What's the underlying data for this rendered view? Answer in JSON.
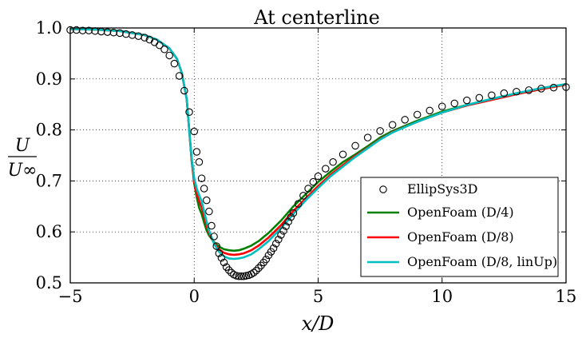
{
  "chart_data": {
    "type": "line",
    "title": "At centerline",
    "xlabel": "x/D",
    "ylabel": {
      "numerator": "U",
      "denominator": "U∞"
    },
    "xlim": [
      -5,
      15
    ],
    "ylim": [
      0.5,
      1.0
    ],
    "xticks": [
      -5,
      0,
      5,
      10,
      15
    ],
    "xtick_labels": [
      "−5",
      "0",
      "5",
      "10",
      "15"
    ],
    "yticks": [
      0.5,
      0.6,
      0.7,
      0.8,
      0.9,
      1.0
    ],
    "ytick_labels": [
      "0.5",
      "0.6",
      "0.7",
      "0.8",
      "0.9",
      "1.0"
    ],
    "grid": true,
    "legend_position": "lower-right",
    "series": [
      {
        "name": "EllipSys3D",
        "style": "markers",
        "marker": "open-circle",
        "color": "#000000",
        "points": [
          [
            -5.0,
            0.996
          ],
          [
            -4.75,
            0.996
          ],
          [
            -4.5,
            0.995
          ],
          [
            -4.25,
            0.995
          ],
          [
            -4.0,
            0.994
          ],
          [
            -3.75,
            0.993
          ],
          [
            -3.5,
            0.992
          ],
          [
            -3.25,
            0.991
          ],
          [
            -3.0,
            0.99
          ],
          [
            -2.75,
            0.988
          ],
          [
            -2.5,
            0.986
          ],
          [
            -2.25,
            0.984
          ],
          [
            -2.0,
            0.981
          ],
          [
            -1.8,
            0.977
          ],
          [
            -1.6,
            0.972
          ],
          [
            -1.4,
            0.966
          ],
          [
            -1.2,
            0.958
          ],
          [
            -1.0,
            0.946
          ],
          [
            -0.8,
            0.93
          ],
          [
            -0.6,
            0.906
          ],
          [
            -0.4,
            0.877
          ],
          [
            -0.2,
            0.835
          ],
          [
            0.0,
            0.797
          ],
          [
            0.1,
            0.757
          ],
          [
            0.2,
            0.737
          ],
          [
            0.3,
            0.705
          ],
          [
            0.4,
            0.685
          ],
          [
            0.5,
            0.662
          ],
          [
            0.6,
            0.64
          ],
          [
            0.7,
            0.612
          ],
          [
            0.8,
            0.591
          ],
          [
            0.9,
            0.572
          ],
          [
            1.0,
            0.558
          ],
          [
            1.1,
            0.549
          ],
          [
            1.2,
            0.54
          ],
          [
            1.3,
            0.531
          ],
          [
            1.4,
            0.525
          ],
          [
            1.5,
            0.52
          ],
          [
            1.6,
            0.516
          ],
          [
            1.7,
            0.514
          ],
          [
            1.8,
            0.513
          ],
          [
            1.9,
            0.513
          ],
          [
            2.0,
            0.513
          ],
          [
            2.1,
            0.514
          ],
          [
            2.2,
            0.515
          ],
          [
            2.3,
            0.517
          ],
          [
            2.4,
            0.52
          ],
          [
            2.5,
            0.524
          ],
          [
            2.6,
            0.529
          ],
          [
            2.7,
            0.534
          ],
          [
            2.8,
            0.54
          ],
          [
            2.9,
            0.546
          ],
          [
            3.0,
            0.554
          ],
          [
            3.1,
            0.561
          ],
          [
            3.2,
            0.568
          ],
          [
            3.3,
            0.577
          ],
          [
            3.4,
            0.585
          ],
          [
            3.5,
            0.594
          ],
          [
            3.6,
            0.602
          ],
          [
            3.7,
            0.611
          ],
          [
            3.8,
            0.62
          ],
          [
            3.9,
            0.629
          ],
          [
            4.0,
            0.637
          ],
          [
            4.2,
            0.655
          ],
          [
            4.4,
            0.671
          ],
          [
            4.6,
            0.685
          ],
          [
            4.8,
            0.698
          ],
          [
            5.0,
            0.709
          ],
          [
            5.3,
            0.724
          ],
          [
            5.6,
            0.737
          ],
          [
            6.0,
            0.752
          ],
          [
            6.5,
            0.769
          ],
          [
            7.0,
            0.785
          ],
          [
            7.5,
            0.798
          ],
          [
            8.0,
            0.81
          ],
          [
            8.5,
            0.82
          ],
          [
            9.0,
            0.83
          ],
          [
            9.5,
            0.838
          ],
          [
            10.0,
            0.846
          ],
          [
            10.5,
            0.852
          ],
          [
            11.0,
            0.858
          ],
          [
            11.5,
            0.863
          ],
          [
            12.0,
            0.868
          ],
          [
            12.5,
            0.872
          ],
          [
            13.0,
            0.875
          ],
          [
            13.5,
            0.878
          ],
          [
            14.0,
            0.881
          ],
          [
            14.5,
            0.883
          ],
          [
            15.0,
            0.884
          ]
        ]
      },
      {
        "name": "OpenFoam (D/4)",
        "style": "line",
        "color": "#008000",
        "points": [
          [
            -5.0,
            0.998
          ],
          [
            -4.0,
            0.997
          ],
          [
            -3.0,
            0.994
          ],
          [
            -2.0,
            0.986
          ],
          [
            -1.5,
            0.977
          ],
          [
            -1.0,
            0.96
          ],
          [
            -0.7,
            0.94
          ],
          [
            -0.5,
            0.912
          ],
          [
            -0.3,
            0.86
          ],
          [
            -0.2,
            0.8
          ],
          [
            -0.1,
            0.74
          ],
          [
            0.0,
            0.695
          ],
          [
            0.1,
            0.668
          ],
          [
            0.2,
            0.647
          ],
          [
            0.3,
            0.635
          ],
          [
            0.4,
            0.618
          ],
          [
            0.5,
            0.603
          ],
          [
            0.6,
            0.593
          ],
          [
            0.8,
            0.58
          ],
          [
            1.0,
            0.571
          ],
          [
            1.2,
            0.566
          ],
          [
            1.4,
            0.564
          ],
          [
            1.6,
            0.563
          ],
          [
            1.8,
            0.564
          ],
          [
            2.0,
            0.567
          ],
          [
            2.3,
            0.573
          ],
          [
            2.6,
            0.582
          ],
          [
            3.0,
            0.598
          ],
          [
            3.5,
            0.622
          ],
          [
            4.0,
            0.65
          ],
          [
            4.5,
            0.674
          ],
          [
            5.0,
            0.698
          ],
          [
            5.5,
            0.718
          ],
          [
            6.0,
            0.737
          ],
          [
            6.5,
            0.752
          ],
          [
            7.0,
            0.768
          ],
          [
            7.5,
            0.785
          ],
          [
            8.0,
            0.798
          ],
          [
            9.0,
            0.818
          ],
          [
            10.0,
            0.836
          ],
          [
            11.0,
            0.849
          ],
          [
            12.0,
            0.86
          ],
          [
            13.0,
            0.871
          ],
          [
            14.0,
            0.88
          ],
          [
            15.0,
            0.889
          ]
        ]
      },
      {
        "name": "OpenFoam (D/8)",
        "style": "line",
        "color": "#ff0000",
        "points": [
          [
            -5.0,
            0.998
          ],
          [
            -4.0,
            0.997
          ],
          [
            -3.0,
            0.994
          ],
          [
            -2.0,
            0.986
          ],
          [
            -1.5,
            0.977
          ],
          [
            -1.0,
            0.96
          ],
          [
            -0.7,
            0.94
          ],
          [
            -0.5,
            0.912
          ],
          [
            -0.3,
            0.86
          ],
          [
            -0.2,
            0.8
          ],
          [
            -0.1,
            0.74
          ],
          [
            0.0,
            0.698
          ],
          [
            0.1,
            0.675
          ],
          [
            0.2,
            0.66
          ],
          [
            0.3,
            0.648
          ],
          [
            0.4,
            0.63
          ],
          [
            0.5,
            0.612
          ],
          [
            0.6,
            0.598
          ],
          [
            0.8,
            0.578
          ],
          [
            1.0,
            0.566
          ],
          [
            1.2,
            0.559
          ],
          [
            1.4,
            0.556
          ],
          [
            1.6,
            0.555
          ],
          [
            1.8,
            0.556
          ],
          [
            2.0,
            0.558
          ],
          [
            2.3,
            0.564
          ],
          [
            2.6,
            0.573
          ],
          [
            3.0,
            0.589
          ],
          [
            3.5,
            0.613
          ],
          [
            4.0,
            0.641
          ],
          [
            4.5,
            0.666
          ],
          [
            5.0,
            0.69
          ],
          [
            5.5,
            0.712
          ],
          [
            6.0,
            0.731
          ],
          [
            6.5,
            0.749
          ],
          [
            7.0,
            0.765
          ],
          [
            7.5,
            0.782
          ],
          [
            8.0,
            0.796
          ],
          [
            9.0,
            0.816
          ],
          [
            10.0,
            0.834
          ],
          [
            11.0,
            0.848
          ],
          [
            12.0,
            0.859
          ],
          [
            13.0,
            0.87
          ],
          [
            14.0,
            0.88
          ],
          [
            15.0,
            0.889
          ]
        ]
      },
      {
        "name": "OpenFoam (D/8, linUp)",
        "style": "line",
        "color": "#00bfbf",
        "points": [
          [
            -5.0,
            0.998
          ],
          [
            -4.0,
            0.997
          ],
          [
            -3.0,
            0.994
          ],
          [
            -2.0,
            0.986
          ],
          [
            -1.5,
            0.977
          ],
          [
            -1.0,
            0.96
          ],
          [
            -0.7,
            0.94
          ],
          [
            -0.5,
            0.912
          ],
          [
            -0.3,
            0.86
          ],
          [
            -0.2,
            0.8
          ],
          [
            -0.1,
            0.745
          ],
          [
            0.0,
            0.705
          ],
          [
            0.1,
            0.685
          ],
          [
            0.2,
            0.672
          ],
          [
            0.3,
            0.66
          ],
          [
            0.4,
            0.64
          ],
          [
            0.5,
            0.62
          ],
          [
            0.6,
            0.602
          ],
          [
            0.8,
            0.577
          ],
          [
            1.0,
            0.561
          ],
          [
            1.2,
            0.552
          ],
          [
            1.4,
            0.548
          ],
          [
            1.6,
            0.547
          ],
          [
            1.8,
            0.548
          ],
          [
            2.0,
            0.55
          ],
          [
            2.3,
            0.556
          ],
          [
            2.6,
            0.566
          ],
          [
            3.0,
            0.582
          ],
          [
            3.5,
            0.607
          ],
          [
            4.0,
            0.635
          ],
          [
            4.5,
            0.662
          ],
          [
            5.0,
            0.686
          ],
          [
            5.5,
            0.709
          ],
          [
            6.0,
            0.728
          ],
          [
            6.5,
            0.747
          ],
          [
            7.0,
            0.764
          ],
          [
            7.5,
            0.781
          ],
          [
            8.0,
            0.795
          ],
          [
            9.0,
            0.816
          ],
          [
            10.0,
            0.834
          ],
          [
            11.0,
            0.849
          ],
          [
            12.0,
            0.861
          ],
          [
            13.0,
            0.872
          ],
          [
            14.0,
            0.882
          ],
          [
            15.0,
            0.89
          ]
        ]
      }
    ]
  }
}
